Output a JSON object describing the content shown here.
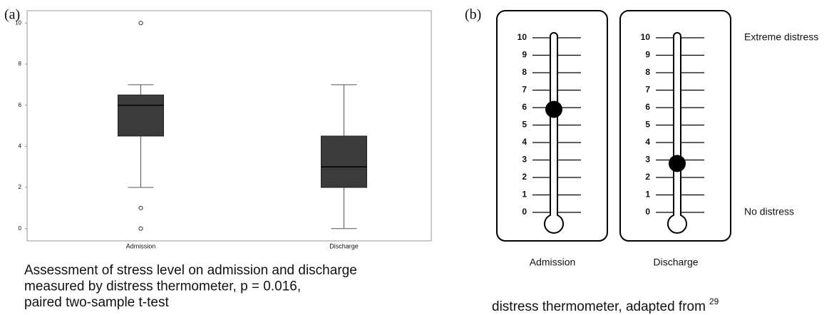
{
  "chart_data": [
    {
      "type": "box",
      "label": "(a)",
      "caption": [
        "Assessment of stress level on admission and discharge",
        "measured by distress thermometer, p = 0.016,",
        "paired two-sample t-test"
      ],
      "categories": [
        "Admission",
        "Discharge"
      ],
      "boxes": [
        {
          "min": 2,
          "q1": 4.5,
          "median": 6,
          "q3": 6.5,
          "max": 7,
          "outliers": [
            10,
            1,
            0
          ]
        },
        {
          "min": 0,
          "q1": 2,
          "median": 3,
          "q3": 4.5,
          "max": 7,
          "outliers": []
        }
      ],
      "color": "#3b3b3b",
      "ylim": [
        -0.6,
        10.6
      ],
      "yticks": [
        0,
        2,
        4,
        6,
        8,
        10
      ]
    },
    {
      "type": "thermometer",
      "label": "(b)",
      "caption": "distress thermometer, adapted from",
      "caption_ref": "29",
      "categories": [
        "Admission",
        "Discharge"
      ],
      "values": [
        5.9,
        2.8
      ],
      "color": "#000000",
      "ylim": [
        0,
        10
      ],
      "yticks": [
        0,
        1,
        2,
        3,
        4,
        5,
        6,
        7,
        8,
        9,
        10
      ],
      "annotations": [
        {
          "text": "Extreme distress",
          "value": 10
        },
        {
          "text": "No distress",
          "value": 0
        }
      ]
    }
  ]
}
